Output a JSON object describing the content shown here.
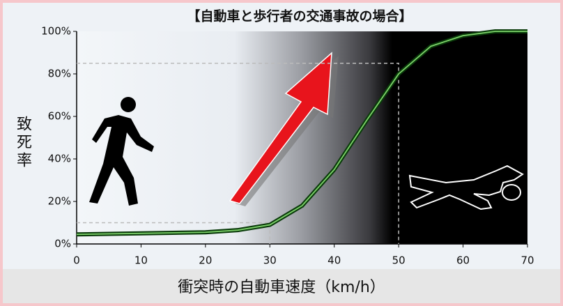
{
  "chart_data": {
    "type": "line",
    "title": "【自動車と歩行者の交通事故の場合】",
    "x_label": "衝突時の自動車速度（km/h）",
    "y_label": "致死率",
    "x": [
      0,
      10,
      20,
      25,
      30,
      35,
      40,
      45,
      50,
      55,
      60,
      65,
      70
    ],
    "series": [
      {
        "color": "#7ed36b",
        "values": [
          4.5,
          5,
          5.5,
          6.5,
          9,
          18,
          35,
          58,
          80,
          93,
          98,
          100,
          100
        ]
      }
    ],
    "reference_points": [
      {
        "x": 30,
        "y": 10
      },
      {
        "x": 50,
        "y": 85
      }
    ],
    "xlim": [
      0,
      70
    ],
    "xticks": [
      0,
      10,
      20,
      30,
      40,
      50,
      60,
      70
    ],
    "ylim": [
      0,
      100
    ],
    "yticks": [
      {
        "value": 0,
        "label": "0%"
      },
      {
        "value": 20,
        "label": "20%"
      },
      {
        "value": 40,
        "label": "40%"
      },
      {
        "value": 60,
        "label": "60%"
      },
      {
        "value": 80,
        "label": "80%"
      },
      {
        "value": 100,
        "label": "100%"
      }
    ]
  }
}
